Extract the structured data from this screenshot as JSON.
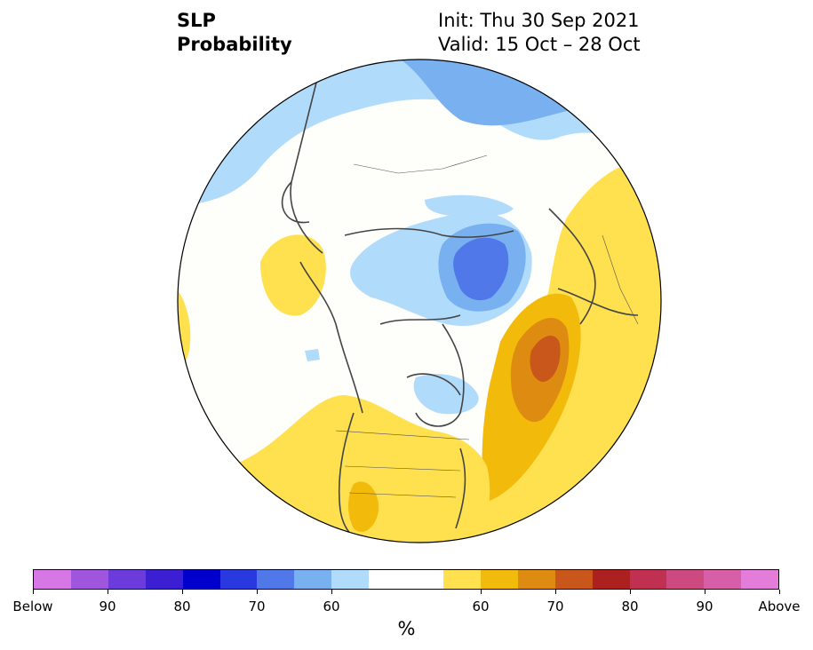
{
  "title": {
    "left_line1": "SLP",
    "left_line2": "Probability",
    "init": "Init: Thu 30 Sep 2021",
    "valid": "Valid: 15 Oct – 28 Oct"
  },
  "colors": {
    "below": [
      "#d777e6",
      "#a055dd",
      "#6b3bdc",
      "#3c1fd3",
      "#0000cc",
      "#2a39df",
      "#5078e8",
      "#79b1f0",
      "#b0dbfa"
    ],
    "neutral": "#ffffff",
    "above": [
      "#ffe04f",
      "#f2ba0b",
      "#de8b12",
      "#c9561a",
      "#ad2020",
      "#c03050",
      "#cd4a80",
      "#d65fa8",
      "#e47cd9"
    ]
  },
  "colorbar": {
    "labels": [
      "Below",
      "90",
      "80",
      "70",
      "60",
      "60",
      "70",
      "80",
      "90",
      "Above"
    ],
    "unit": "%"
  }
}
